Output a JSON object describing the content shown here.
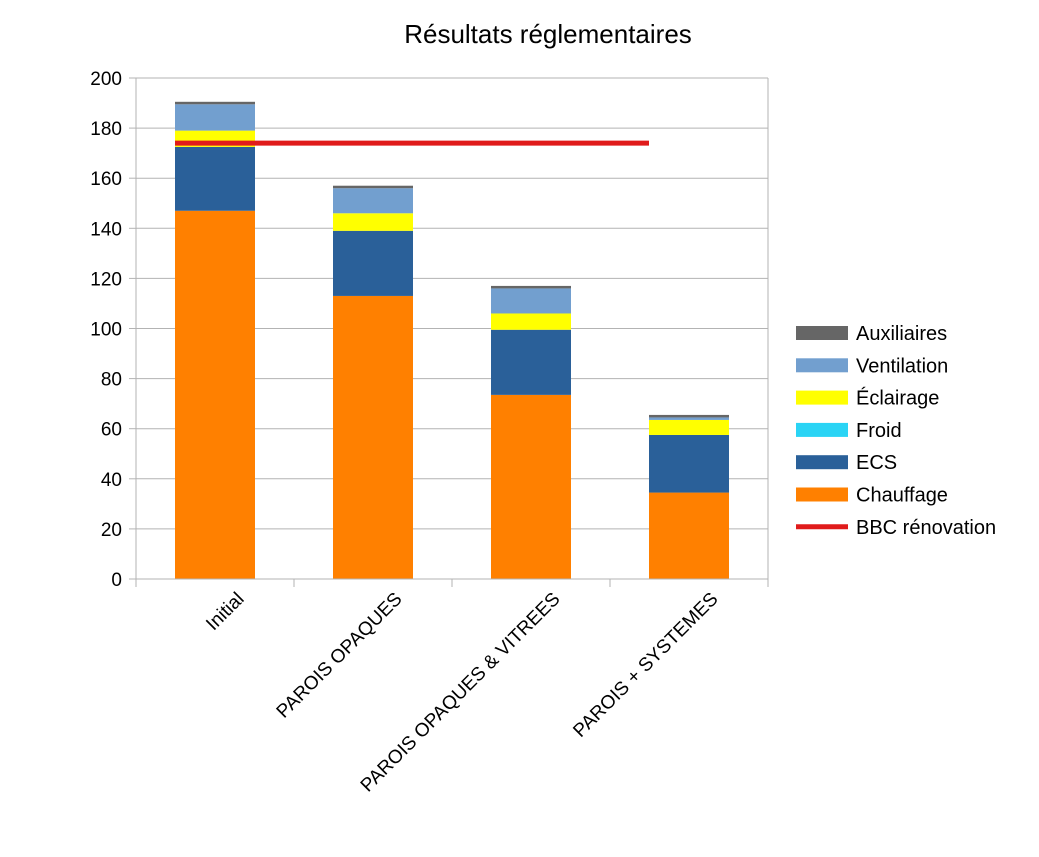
{
  "chart_data": {
    "type": "bar",
    "stacked": true,
    "title": "Résultats réglementaires",
    "xlabel": "",
    "ylabel": "",
    "ylim": [
      0,
      200
    ],
    "y_ticks": [
      0,
      20,
      40,
      60,
      80,
      100,
      120,
      140,
      160,
      180,
      200
    ],
    "grid": true,
    "legend_position": "right",
    "categories": [
      "Initial",
      "PAROIS OPAQUES",
      "PAROIS OPAQUES & VITREES",
      "PAROIS + SYSTEMES"
    ],
    "series": [
      {
        "name": "Chauffage",
        "color": "#ff8000",
        "values": [
          147,
          113,
          73.5,
          34.5
        ]
      },
      {
        "name": "ECS",
        "color": "#2a6099",
        "values": [
          25.5,
          26,
          26,
          23
        ]
      },
      {
        "name": "Froid",
        "color": "#2ad4f5",
        "values": [
          0,
          0,
          0,
          0
        ]
      },
      {
        "name": "Éclairage",
        "color": "#ffff00",
        "values": [
          6.5,
          7,
          6.5,
          6
        ]
      },
      {
        "name": "Ventilation",
        "color": "#729fcf",
        "values": [
          10.5,
          10,
          10,
          1
        ]
      },
      {
        "name": "Auxiliaires",
        "color": "#666666",
        "values": [
          1,
          1,
          1,
          1
        ]
      }
    ],
    "reference_line": {
      "name": "BBC rénovation",
      "color": "#e01b1b",
      "value": 174
    },
    "legend_order": [
      "Auxiliaires",
      "Ventilation",
      "Éclairage",
      "Froid",
      "ECS",
      "Chauffage",
      "BBC rénovation"
    ]
  }
}
